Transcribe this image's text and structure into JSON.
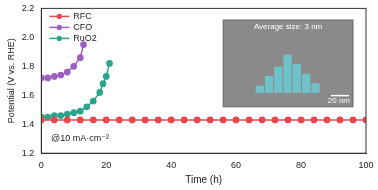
{
  "chart_data": {
    "type": "line",
    "xlabel": "Time (h)",
    "ylabel": "Potential (V vs. RHE)",
    "xlim": [
      0,
      100
    ],
    "xticks": [
      0,
      20,
      40,
      60,
      80,
      100
    ],
    "ylim": [
      1.2,
      2.2
    ],
    "yticks": [
      {
        "value": 1.2,
        "label": "1.2"
      },
      {
        "value": 1.4,
        "label": "1.4"
      },
      {
        "value": 1.6,
        "label": "1.6"
      },
      {
        "value": 1.8,
        "label": "1.8"
      },
      {
        "value": 2.0,
        "label": "2.0"
      },
      {
        "value": 2.2,
        "label": "2.2"
      }
    ],
    "grid": false,
    "legend": "top left",
    "marker": "circle",
    "line_style": "solid",
    "annotations": [
      "@10 mA·cm⁻²",
      "Average size: 3 nm",
      "20 nm"
    ],
    "series": [
      {
        "name": "RFC",
        "color": "#e8474c",
        "x": [
          0,
          4,
          8,
          12,
          16,
          20,
          24,
          28,
          32,
          36,
          40,
          44,
          48,
          52,
          56,
          60,
          64,
          68,
          72,
          76,
          80,
          84,
          88,
          92,
          96,
          100
        ],
        "values": [
          1.43,
          1.43,
          1.43,
          1.43,
          1.43,
          1.43,
          1.43,
          1.43,
          1.43,
          1.43,
          1.43,
          1.43,
          1.43,
          1.43,
          1.43,
          1.43,
          1.43,
          1.43,
          1.43,
          1.43,
          1.43,
          1.43,
          1.43,
          1.43,
          1.43,
          1.43
        ]
      },
      {
        "name": "CFO",
        "color": "#9b5fc0",
        "x": [
          0,
          2,
          4,
          6,
          8,
          10,
          12,
          13
        ],
        "values": [
          1.72,
          1.72,
          1.73,
          1.74,
          1.76,
          1.8,
          1.86,
          1.95
        ]
      },
      {
        "name": "RuO2",
        "color": "#2aa58a",
        "x": [
          0,
          2,
          4,
          6,
          8,
          10,
          12,
          14,
          16,
          18,
          19,
          20,
          21
        ],
        "values": [
          1.45,
          1.45,
          1.46,
          1.46,
          1.47,
          1.48,
          1.49,
          1.52,
          1.56,
          1.62,
          1.68,
          1.73,
          1.82
        ]
      }
    ]
  }
}
